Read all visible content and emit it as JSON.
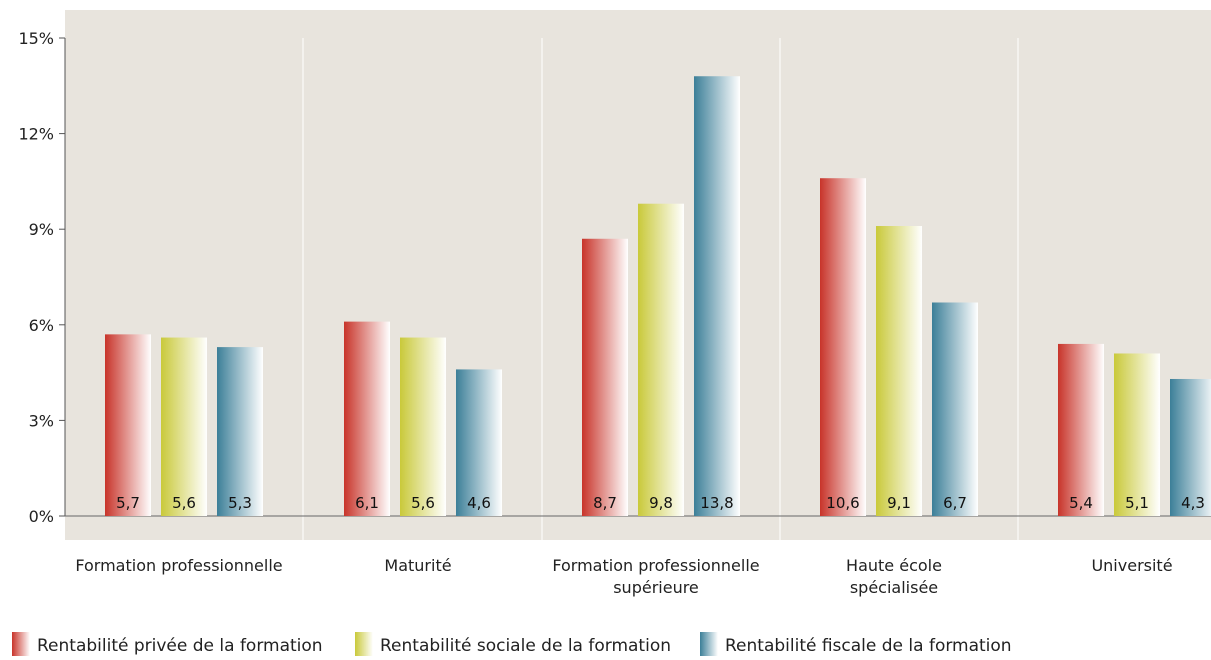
{
  "chart_data": {
    "type": "bar",
    "title": "",
    "xlabel": "",
    "ylabel": "",
    "ylim": [
      0,
      15
    ],
    "yticks": [
      0,
      3,
      6,
      9,
      12,
      15
    ],
    "ytick_labels": [
      "0%",
      "3%",
      "6%",
      "9%",
      "12%",
      "15%"
    ],
    "grid": "vertical separators between categories",
    "legend_position": "bottom",
    "categories": [
      [
        "Formation professionnelle"
      ],
      [
        "Maturité"
      ],
      [
        "Formation professionnelle",
        "supérieure"
      ],
      [
        "Haute école",
        "spécialisée"
      ],
      [
        "Université"
      ]
    ],
    "series": [
      {
        "name": "Rentabilité privée de la formation",
        "color": "#c8342a",
        "values": [
          5.7,
          6.1,
          8.7,
          10.6,
          5.4
        ],
        "labels": [
          "5,7",
          "6,1",
          "8,7",
          "10,6",
          "5,4"
        ]
      },
      {
        "name": "Rentabilité sociale de la formation",
        "color": "#c9c93a",
        "values": [
          5.6,
          5.6,
          9.8,
          9.1,
          5.1
        ],
        "labels": [
          "5,6",
          "5,6",
          "9,8",
          "9,1",
          "5,1"
        ]
      },
      {
        "name": "Rentabilité fiscale de la formation",
        "color": "#3c7f98",
        "values": [
          5.3,
          4.6,
          13.8,
          6.7,
          4.3
        ],
        "labels": [
          "5,3",
          "4,6",
          "13,8",
          "6,7",
          "4,3"
        ]
      }
    ]
  }
}
